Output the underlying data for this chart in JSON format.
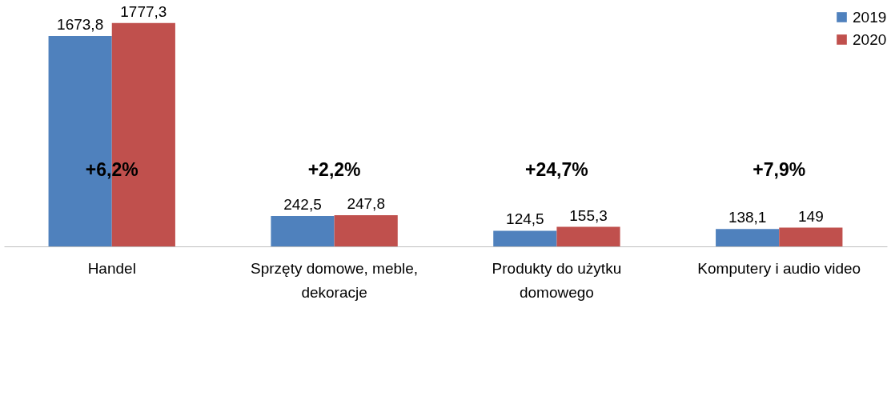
{
  "chart_data": {
    "type": "bar",
    "categories": [
      "Handel",
      "Sprzęty domowe, meble, dekoracje",
      "Produkty do użytku domowego",
      "Komputery i audio video"
    ],
    "series": [
      {
        "name": "2019",
        "color": "#4f81bd",
        "values": [
          1673.8,
          242.5,
          124.5,
          138.1
        ],
        "value_labels": [
          "1673,8",
          "242,5",
          "124,5",
          "138,1"
        ]
      },
      {
        "name": "2020",
        "color": "#c0504d",
        "values": [
          1777.3,
          247.8,
          155.3,
          149
        ],
        "value_labels": [
          "1777,3",
          "247,8",
          "155,3",
          "149"
        ]
      }
    ],
    "annotations": [
      "+6,2%",
      "+2,2%",
      "+24,7%",
      "+7,9%"
    ],
    "legend": "top right",
    "grid": false
  }
}
